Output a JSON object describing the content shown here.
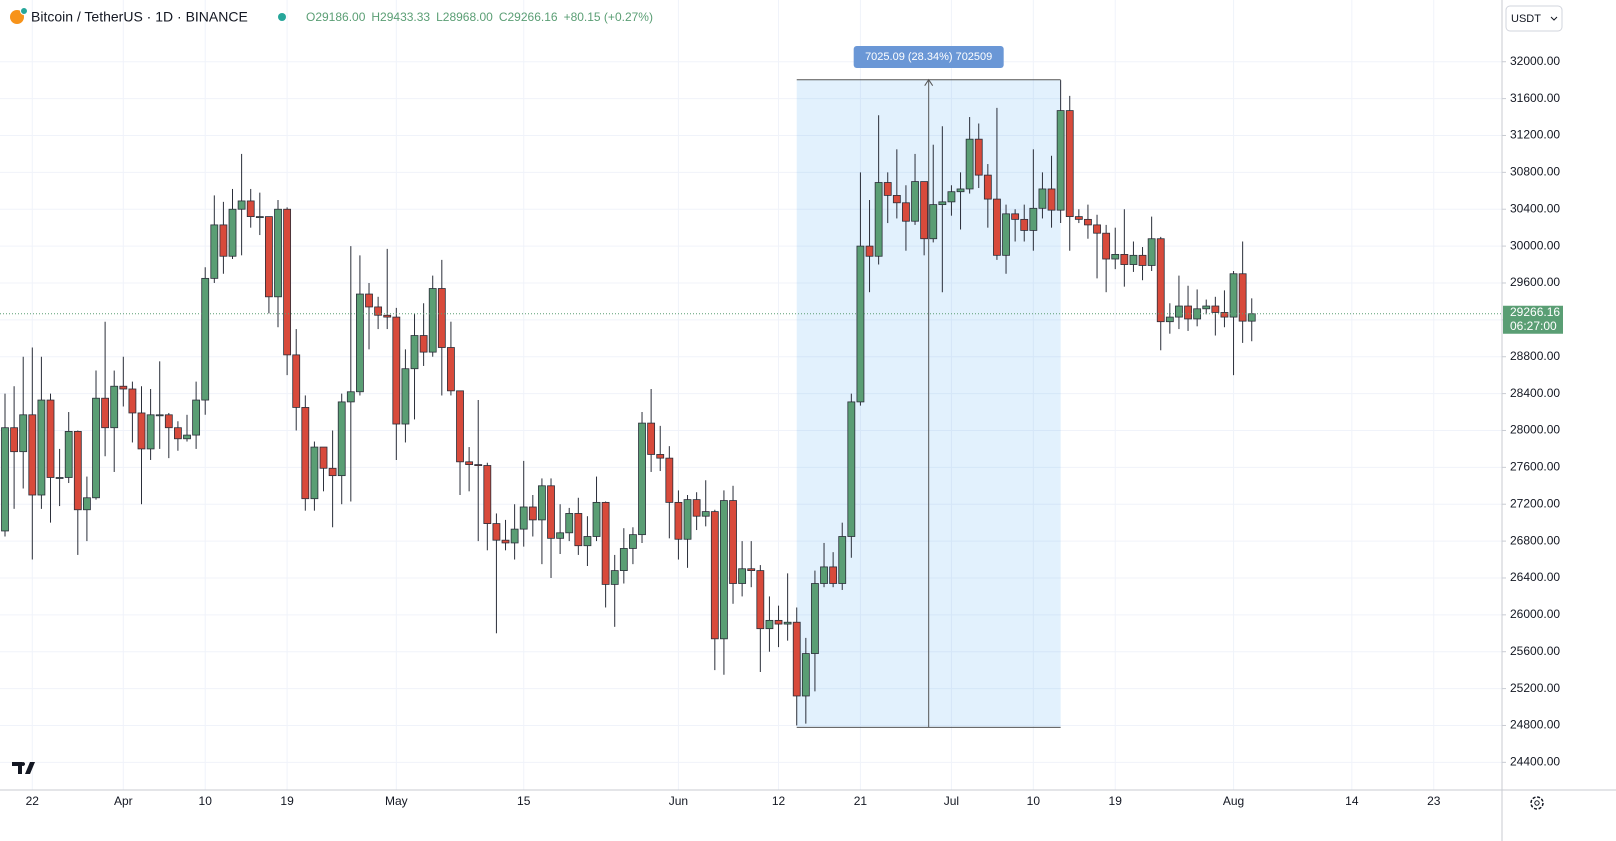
{
  "chart_data": {
    "type": "candlestick",
    "title": "Bitcoin / TetherUS · 1D · BINANCE",
    "ohlc_legend": [
      "O29186.00",
      "H29433.33",
      "L28968.00",
      "C29266.16",
      "+80.15 (+0.27%)"
    ],
    "currency": "USDT",
    "countdown": "06:27:00",
    "up_color": "#5a9e74",
    "down_color": "#d84a3b",
    "open": [
      26910,
      28030,
      27770,
      28170,
      27300,
      28330,
      27490,
      27490,
      27990,
      27140,
      27270,
      28350,
      28030,
      28480,
      28450,
      28190,
      27800,
      28170,
      28170,
      28030,
      27910,
      27950,
      28330,
      29650,
      30230,
      29890,
      30400,
      30490,
      30320,
      30320,
      29450,
      30400,
      28820,
      28250,
      27260,
      27820,
      27590,
      27510,
      28310,
      28420,
      29480,
      29340,
      29250,
      29230,
      28070,
      28670,
      29030,
      28850,
      29540,
      28900,
      28430,
      27660,
      27630,
      27620,
      26990,
      26810,
      26780,
      26930,
      27170,
      27030,
      27400,
      26830,
      26890,
      27100,
      26750,
      26850,
      27220,
      26330,
      26480,
      26720,
      26870,
      28080,
      27740,
      27700,
      27220,
      26820,
      27250,
      27070,
      27120,
      25740,
      27240,
      26340,
      26500,
      26480,
      25850,
      25940,
      25900,
      25920,
      25120,
      25580,
      26340,
      26520,
      26340,
      26850,
      28310,
      30000,
      29890,
      30690,
      30550,
      30470,
      30270,
      30700,
      30080,
      30450,
      30480,
      30590,
      30620,
      31160,
      30770,
      30510,
      29900,
      30350,
      30290,
      30170,
      30410,
      30620,
      30390,
      31470,
      30320,
      30290,
      30230,
      30140,
      29860,
      29910,
      29800,
      29900,
      29790,
      30080,
      29180,
      29230,
      29350,
      29210,
      29320,
      29350,
      29280,
      29230,
      29700,
      29186
    ],
    "high": [
      28400,
      28480,
      28800,
      28900,
      28800,
      28400,
      27800,
      28200,
      28000,
      27500,
      28650,
      29180,
      28650,
      28800,
      28530,
      28480,
      28450,
      28750,
      28190,
      28100,
      28170,
      28530,
      29770,
      30550,
      30480,
      30620,
      31000,
      30620,
      30580,
      30320,
      30500,
      30420,
      29100,
      28380,
      27880,
      27820,
      28000,
      28400,
      30000,
      29900,
      29600,
      29450,
      29970,
      29330,
      28880,
      29270,
      29380,
      29680,
      29850,
      29180,
      28430,
      27820,
      28330,
      27650,
      27100,
      27030,
      27200,
      27670,
      27300,
      27480,
      27480,
      27200,
      27160,
      27270,
      27070,
      27500,
      27230,
      26650,
      26940,
      26950,
      28200,
      28450,
      28050,
      27830,
      27350,
      27300,
      27330,
      27460,
      27140,
      27350,
      27400,
      26800,
      26800,
      26540,
      26200,
      26100,
      26450,
      26080,
      25750,
      26480,
      26780,
      26680,
      27000,
      28400,
      30800,
      30500,
      31420,
      30800,
      31050,
      30660,
      31000,
      30700,
      31100,
      31300,
      30660,
      30800,
      31400,
      31330,
      30890,
      31500,
      30450,
      30400,
      30450,
      31050,
      30800,
      30980,
      31800,
      31630,
      30400,
      30450,
      30340,
      30230,
      30200,
      30400,
      30050,
      29990,
      30320,
      30100,
      29380,
      29680,
      29570,
      29530,
      29420,
      29450,
      29520,
      29730,
      30050,
      29433.33
    ],
    "low": [
      26850,
      27150,
      27370,
      26600,
      27150,
      27000,
      27180,
      27430,
      26650,
      26800,
      27250,
      27720,
      27550,
      28260,
      27870,
      27200,
      27680,
      27800,
      27700,
      27780,
      27880,
      27800,
      28170,
      29600,
      29700,
      29860,
      29900,
      30200,
      30120,
      29270,
      29120,
      28600,
      28000,
      27130,
      27130,
      27340,
      26950,
      27200,
      27230,
      28380,
      28880,
      29100,
      29100,
      27680,
      27870,
      28120,
      28700,
      28800,
      28380,
      28380,
      27300,
      27340,
      26800,
      26700,
      25800,
      26700,
      26600,
      26740,
      26850,
      26550,
      26400,
      26660,
      26800,
      26650,
      26530,
      26800,
      26080,
      25870,
      26340,
      26550,
      26780,
      27550,
      27560,
      26830,
      26600,
      26510,
      26920,
      26960,
      25400,
      25350,
      26120,
      26200,
      26300,
      25380,
      25600,
      25650,
      25720,
      24800,
      24820,
      25170,
      26300,
      26300,
      26270,
      26620,
      28270,
      29500,
      29800,
      30250,
      30300,
      29950,
      30230,
      29900,
      30040,
      29500,
      30330,
      30180,
      30570,
      30630,
      30200,
      29850,
      29700,
      30050,
      30050,
      29950,
      30300,
      30200,
      30250,
      29950,
      30250,
      30080,
      29650,
      29500,
      29750,
      29560,
      29720,
      29630,
      29730,
      28870,
      29050,
      29100,
      29080,
      29130,
      29260,
      29030,
      29120,
      28600,
      28950,
      28968
    ],
    "close": [
      28030,
      27770,
      28170,
      27300,
      28330,
      27490,
      27490,
      27990,
      27140,
      27270,
      28350,
      28030,
      28480,
      28450,
      28190,
      27800,
      28170,
      28170,
      28030,
      27910,
      27950,
      28330,
      29650,
      30230,
      29890,
      30400,
      30490,
      30320,
      30320,
      29450,
      30400,
      28820,
      28250,
      27260,
      27820,
      27590,
      27510,
      28310,
      28420,
      29480,
      29340,
      29250,
      29230,
      28070,
      28670,
      29030,
      28850,
      29540,
      28900,
      28430,
      27660,
      27630,
      27620,
      26990,
      26810,
      26780,
      26930,
      27170,
      27030,
      27400,
      26830,
      26890,
      27100,
      26750,
      26850,
      27220,
      26330,
      26480,
      26720,
      26870,
      28080,
      27740,
      27700,
      27220,
      26820,
      27250,
      27070,
      27120,
      25740,
      27240,
      26340,
      26500,
      26480,
      25850,
      25940,
      25900,
      25920,
      25120,
      25580,
      26340,
      26520,
      26340,
      26850,
      28310,
      30000,
      29890,
      30690,
      30550,
      30470,
      30270,
      30700,
      30080,
      30450,
      30480,
      30590,
      30620,
      31160,
      30770,
      30510,
      29900,
      30350,
      30290,
      30170,
      30410,
      30620,
      30390,
      31470,
      30320,
      30290,
      30230,
      30140,
      29860,
      29910,
      29800,
      29900,
      29790,
      30080,
      29180,
      29230,
      29350,
      29210,
      29320,
      29350,
      29280,
      29230,
      29700,
      29186,
      29266.16
    ],
    "xlim": [
      -0.55,
      164.5
    ],
    "xticks": [
      {
        "value": 3,
        "label": "22"
      },
      {
        "value": 13,
        "label": "Apr"
      },
      {
        "value": 22,
        "label": "10"
      },
      {
        "value": 31,
        "label": "19"
      },
      {
        "value": 43,
        "label": "May"
      },
      {
        "value": 57,
        "label": "15"
      },
      {
        "value": 74,
        "label": "Jun"
      },
      {
        "value": 85,
        "label": "12"
      },
      {
        "value": 94,
        "label": "21"
      },
      {
        "value": 104,
        "label": "Jul"
      },
      {
        "value": 113,
        "label": "10"
      },
      {
        "value": 122,
        "label": "19"
      },
      {
        "value": 135,
        "label": "Aug"
      },
      {
        "value": 148,
        "label": "14"
      },
      {
        "value": 157,
        "label": "23"
      }
    ],
    "ylim": [
      24100,
      32290
    ],
    "yticks": [
      {
        "value": 24400,
        "label": "24400.00"
      },
      {
        "value": 24800,
        "label": "24800.00"
      },
      {
        "value": 25200,
        "label": "25200.00"
      },
      {
        "value": 25600,
        "label": "25600.00"
      },
      {
        "value": 26000,
        "label": "26000.00"
      },
      {
        "value": 26400,
        "label": "26400.00"
      },
      {
        "value": 26800,
        "label": "26800.00"
      },
      {
        "value": 27200,
        "label": "27200.00"
      },
      {
        "value": 27600,
        "label": "27600.00"
      },
      {
        "value": 28000,
        "label": "28000.00"
      },
      {
        "value": 28400,
        "label": "28400.00"
      },
      {
        "value": 28800,
        "label": "28800.00"
      },
      {
        "value": 29200,
        "label": "29200.00"
      },
      {
        "value": 29600,
        "label": "29600.00"
      },
      {
        "value": 30000,
        "label": "30000.00"
      },
      {
        "value": 30400,
        "label": "30400.00"
      },
      {
        "value": 30800,
        "label": "30800.00"
      },
      {
        "value": 31200,
        "label": "31200.00"
      },
      {
        "value": 31600,
        "label": "31600.00"
      },
      {
        "value": 32000,
        "label": "32000.00"
      }
    ],
    "grid": true,
    "measure": {
      "label": "7025.09 (28.34%) 702509",
      "start": 87,
      "end": 116,
      "low": 24780,
      "high": 31805
    }
  }
}
